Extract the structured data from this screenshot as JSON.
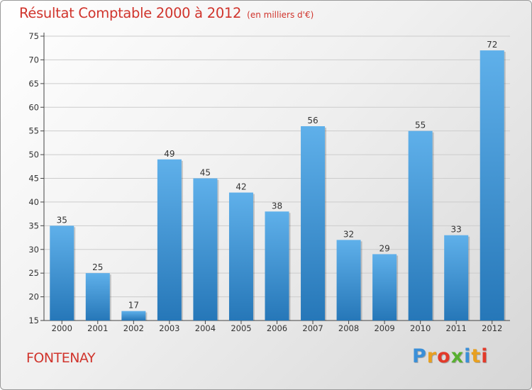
{
  "chart_data": {
    "type": "bar",
    "title": "Résultat Comptable 2000 à 2012",
    "subtitle": "(en milliers d'€)",
    "categories": [
      "2000",
      "2001",
      "2002",
      "2003",
      "2004",
      "2005",
      "2006",
      "2007",
      "2008",
      "2009",
      "2010",
      "2011",
      "2012"
    ],
    "values": [
      35,
      25,
      17,
      49,
      45,
      42,
      38,
      56,
      32,
      29,
      55,
      33,
      72
    ],
    "ylim": [
      15,
      75
    ],
    "yticks": [
      15,
      20,
      25,
      30,
      35,
      40,
      45,
      50,
      55,
      60,
      65,
      70,
      75
    ],
    "xlabel": "",
    "ylabel": "",
    "grid": true
  },
  "footer": {
    "town": "FONTENAY",
    "logo_letters": [
      "P",
      "r",
      "o",
      "x",
      "i",
      "t",
      "i"
    ],
    "logo_colors": [
      "#3a8fd8",
      "#e8a020",
      "#e23a2a",
      "#58b030",
      "#3a8fd8",
      "#e8a020",
      "#e23a2a"
    ]
  },
  "colors": {
    "title": "#d0342c",
    "bar_top": "#5fb0ea",
    "bar_bottom": "#2677b8",
    "axis": "#444444",
    "grid": "#cccccc"
  }
}
